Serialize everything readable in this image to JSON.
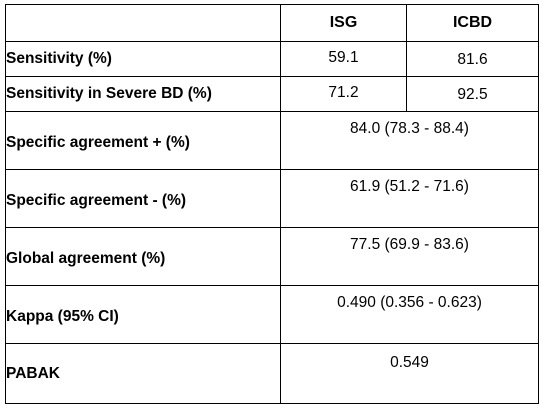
{
  "table": {
    "columns": [
      "",
      "ISG",
      "ICBD"
    ],
    "rows": [
      {
        "label": "Sensitivity (%)",
        "isg": "59.1",
        "icbd": "81.6"
      },
      {
        "label": "Sensitivity in Severe BD (%)",
        "isg": "71.2",
        "icbd": "92.5"
      },
      {
        "label": "Specific agreement + (%)",
        "merged": "84.0 (78.3 - 88.4)"
      },
      {
        "label": "Specific agreement - (%)",
        "merged": "61.9 (51.2 - 71.6)"
      },
      {
        "label": "Global agreement (%)",
        "merged": "77.5 (69.9 - 83.6)"
      },
      {
        "label": "Kappa (95% CI)",
        "merged": "0.490 (0.356 - 0.623)"
      },
      {
        "label": "PABAK",
        "merged": "0.549"
      }
    ]
  }
}
